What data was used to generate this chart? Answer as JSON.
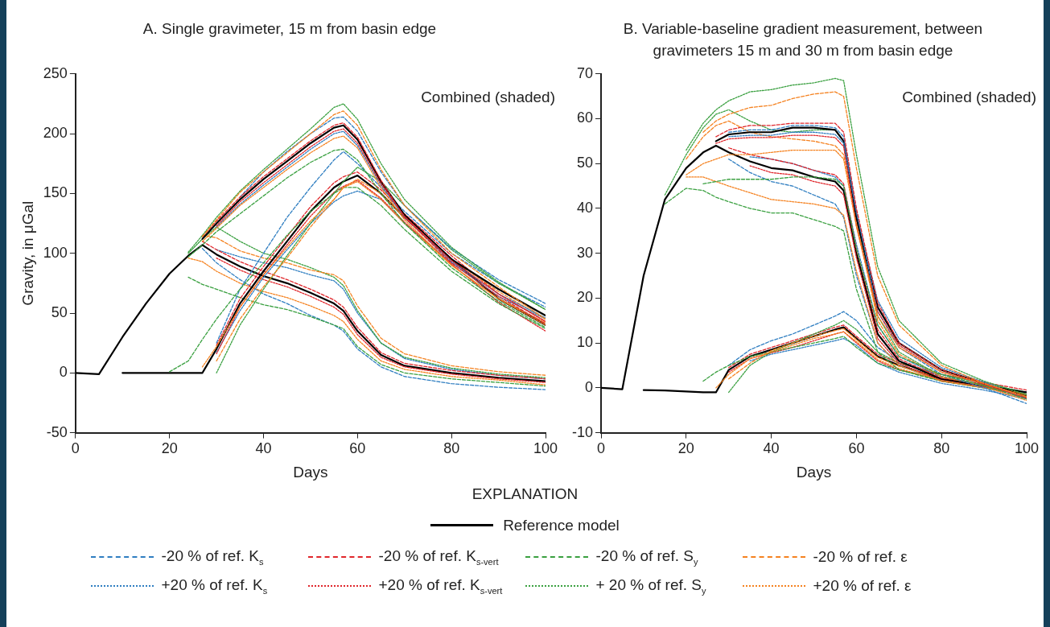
{
  "chart_data": [
    {
      "type": "line",
      "title": "A. Single gravimeter, 15 m from basin edge",
      "xlabel": "Days",
      "ylabel": "Gravity, in μGal",
      "legend_title": "EXPLANATION",
      "legend": "bottom",
      "marker": "none",
      "grid": false,
      "xlim": [
        0,
        100
      ],
      "xticks": [
        0,
        20,
        40,
        60,
        80,
        100
      ],
      "ylim": [
        -50,
        250
      ],
      "yticks": [
        -50,
        0,
        50,
        100,
        150,
        200,
        250
      ],
      "annotations": [
        "Combined (shaded)"
      ],
      "x": [
        0,
        5,
        10,
        15,
        20,
        24,
        27,
        30,
        35,
        40,
        45,
        50,
        55,
        57,
        60,
        65,
        70,
        80,
        90,
        100
      ],
      "series": [
        {
          "color": "#000000",
          "line_style": "solid",
          "values": [
            0,
            -1,
            30,
            58,
            83,
            98,
            107,
            99,
            89,
            81,
            75,
            67,
            58,
            52,
            35,
            15,
            6,
            0,
            -4,
            -7
          ]
        },
        {
          "color": "#2f7ec1",
          "line_style": "dashed",
          "values": [
            null,
            null,
            null,
            null,
            null,
            null,
            104,
            92,
            78,
            66,
            58,
            48,
            40,
            35,
            20,
            5,
            -3,
            -9,
            -12,
            -14
          ]
        },
        {
          "color": "#2f7ec1",
          "line_style": "dotted",
          "values": [
            null,
            null,
            null,
            null,
            null,
            null,
            null,
            103,
            97,
            92,
            88,
            82,
            77,
            70,
            50,
            25,
            12,
            3,
            -2,
            -5
          ]
        },
        {
          "color": "#e0262b",
          "line_style": "dashed",
          "values": [
            null,
            null,
            null,
            null,
            null,
            null,
            110,
            103,
            93,
            85,
            78,
            70,
            61,
            55,
            38,
            17,
            8,
            2,
            -2,
            -5
          ]
        },
        {
          "color": "#e0262b",
          "line_style": "dotted",
          "values": [
            null,
            null,
            null,
            null,
            null,
            null,
            null,
            96,
            86,
            78,
            72,
            64,
            55,
            49,
            32,
            13,
            5,
            -1,
            -5,
            -8
          ]
        },
        {
          "color": "#3aa040",
          "line_style": "dashed",
          "values": [
            null,
            null,
            null,
            null,
            null,
            80,
            74,
            70,
            63,
            57,
            53,
            47,
            40,
            37,
            22,
            7,
            0,
            -5,
            -8,
            -11
          ]
        },
        {
          "color": "#3aa040",
          "line_style": "dotted",
          "values": [
            null,
            null,
            null,
            null,
            null,
            100,
            112,
            122,
            110,
            100,
            95,
            88,
            80,
            73,
            52,
            25,
            13,
            4,
            -1,
            -4
          ]
        },
        {
          "color": "#f58220",
          "line_style": "dashed",
          "values": [
            null,
            null,
            null,
            null,
            null,
            null,
            115,
            113,
            102,
            96,
            92,
            86,
            82,
            77,
            56,
            29,
            16,
            6,
            1,
            -2
          ]
        },
        {
          "color": "#f58220",
          "line_style": "dotted",
          "values": [
            null,
            null,
            null,
            null,
            null,
            96,
            93,
            85,
            75,
            68,
            63,
            56,
            48,
            43,
            28,
            10,
            3,
            -3,
            -6,
            -10
          ]
        },
        {
          "color": "#000000",
          "line_style": "solid",
          "values": [
            null,
            null,
            0,
            0,
            0,
            0,
            0,
            20,
            58,
            85,
            110,
            135,
            155,
            160,
            165,
            150,
            130,
            95,
            62,
            40
          ]
        },
        {
          "color": "#2f7ec1",
          "line_style": "dashed",
          "values": [
            null,
            null,
            null,
            null,
            null,
            null,
            null,
            25,
            70,
            100,
            130,
            155,
            178,
            185,
            175,
            155,
            135,
            100,
            75,
            55
          ]
        },
        {
          "color": "#2f7ec1",
          "line_style": "dotted",
          "values": [
            null,
            null,
            null,
            null,
            null,
            null,
            null,
            17,
            52,
            80,
            103,
            125,
            143,
            148,
            152,
            145,
            125,
            92,
            64,
            45
          ]
        },
        {
          "color": "#e0262b",
          "line_style": "dashed",
          "values": [
            null,
            null,
            null,
            null,
            null,
            null,
            null,
            23,
            62,
            89,
            114,
            139,
            159,
            164,
            168,
            153,
            133,
            98,
            66,
            43
          ]
        },
        {
          "color": "#e0262b",
          "line_style": "dotted",
          "values": [
            null,
            null,
            null,
            null,
            null,
            null,
            null,
            16,
            55,
            82,
            107,
            131,
            151,
            156,
            161,
            146,
            126,
            91,
            59,
            35
          ]
        },
        {
          "color": "#3aa040",
          "line_style": "dashed",
          "values": [
            null,
            null,
            null,
            null,
            1,
            10,
            28,
            45,
            70,
            92,
            115,
            135,
            150,
            155,
            155,
            140,
            120,
            85,
            58,
            37
          ]
        },
        {
          "color": "#3aa040",
          "line_style": "dotted",
          "values": [
            null,
            null,
            null,
            null,
            null,
            null,
            null,
            0,
            40,
            70,
            98,
            125,
            150,
            160,
            172,
            160,
            140,
            103,
            75,
            53
          ]
        },
        {
          "color": "#f58220",
          "line_style": "dashed",
          "values": [
            null,
            null,
            null,
            null,
            null,
            null,
            null,
            10,
            45,
            72,
            96,
            122,
            145,
            155,
            162,
            150,
            130,
            95,
            68,
            45
          ]
        },
        {
          "color": "#f58220",
          "line_style": "dotted",
          "values": [
            null,
            null,
            null,
            null,
            null,
            null,
            5,
            22,
            55,
            82,
            105,
            127,
            145,
            155,
            160,
            145,
            125,
            90,
            62,
            42
          ]
        },
        {
          "name": "Reference model",
          "color": "#000000",
          "line_style": "solid",
          "values": [
            null,
            null,
            null,
            null,
            null,
            null,
            112,
            125,
            145,
            162,
            177,
            192,
            205,
            207,
            195,
            160,
            132,
            95,
            70,
            48
          ]
        },
        {
          "name": "-20 % of ref. K$_{s}$",
          "color": "#2f7ec1",
          "line_style": "dashed",
          "values": [
            null,
            null,
            null,
            null,
            null,
            null,
            null,
            null,
            147,
            168,
            185,
            200,
            213,
            214,
            202,
            168,
            140,
            104,
            78,
            58
          ]
        },
        {
          "name": "+20 % of ref. K$_{s}$",
          "color": "#2f7ec1",
          "line_style": "dotted",
          "values": [
            null,
            null,
            null,
            null,
            null,
            null,
            null,
            122,
            141,
            157,
            172,
            187,
            200,
            202,
            190,
            157,
            130,
            93,
            66,
            46
          ]
        },
        {
          "name": "-20 % of ref. K$_{s-vert}$",
          "color": "#e0262b",
          "line_style": "dashed",
          "values": [
            null,
            null,
            null,
            null,
            null,
            null,
            114,
            127,
            147,
            164,
            179,
            194,
            207,
            209,
            197,
            161,
            130,
            92,
            64,
            41
          ]
        },
        {
          "name": "+20 % of ref. K$_{s-vert}$",
          "color": "#e0262b",
          "line_style": "dotted",
          "values": [
            null,
            null,
            null,
            null,
            null,
            null,
            null,
            123,
            143,
            159,
            174,
            189,
            202,
            204,
            192,
            158,
            131,
            94,
            66,
            43
          ]
        },
        {
          "name": "-20 % of ref. S$_{y}$",
          "color": "#3aa040",
          "line_style": "dashed",
          "values": [
            null,
            null,
            null,
            null,
            null,
            97,
            107,
            118,
            133,
            148,
            163,
            176,
            186,
            187,
            178,
            150,
            125,
            88,
            60,
            38
          ]
        },
        {
          "name": "+ 20 % of ref. S$_{y}$",
          "color": "#3aa040",
          "line_style": "dotted",
          "values": [
            null,
            null,
            null,
            null,
            null,
            101,
            115,
            130,
            152,
            170,
            187,
            204,
            222,
            225,
            212,
            175,
            145,
            105,
            76,
            53
          ]
        },
        {
          "name": "-20 % of ref. ε",
          "color": "#f58220",
          "line_style": "dashed",
          "values": [
            null,
            null,
            null,
            null,
            null,
            null,
            114,
            128,
            151,
            168,
            184,
            200,
            216,
            219,
            207,
            170,
            140,
            100,
            72,
            45
          ]
        },
        {
          "name": "+20 % of ref. ε",
          "color": "#f58220",
          "line_style": "dotted",
          "values": [
            null,
            null,
            null,
            null,
            null,
            null,
            110,
            121,
            140,
            155,
            170,
            184,
            196,
            198,
            188,
            155,
            128,
            90,
            62,
            40
          ]
        }
      ]
    },
    {
      "type": "line",
      "title": "B. Variable-baseline gradient measurement, between gravimeters 15 m and 30 m from basin edge",
      "xlabel": "Days",
      "marker": "none",
      "grid": false,
      "xlim": [
        0,
        100
      ],
      "xticks": [
        0,
        20,
        40,
        60,
        80,
        100
      ],
      "ylim": [
        -10,
        70
      ],
      "yticks": [
        -10,
        0,
        10,
        20,
        30,
        40,
        50,
        60,
        70
      ],
      "annotations": [
        "Combined (shaded)"
      ],
      "x": [
        0,
        5,
        10,
        15,
        20,
        24,
        27,
        30,
        35,
        40,
        45,
        50,
        55,
        57,
        60,
        65,
        70,
        80,
        90,
        100
      ],
      "series": [
        {
          "color": "#000000",
          "line_style": "solid",
          "values": [
            null,
            null,
            -0.5,
            -0.6,
            -0.8,
            -1,
            -1,
            4,
            7,
            8.5,
            10,
            11.5,
            13,
            13.5,
            11,
            7,
            5,
            2,
            0.5,
            -1.5
          ]
        },
        {
          "color": "#2f7ec1",
          "line_style": "dashed",
          "values": [
            null,
            null,
            null,
            null,
            null,
            null,
            null,
            5,
            8.5,
            10.5,
            12,
            14,
            16,
            17,
            15,
            9,
            6,
            2.5,
            0.5,
            -1
          ]
        },
        {
          "color": "#2f7ec1",
          "line_style": "dotted",
          "values": [
            null,
            null,
            null,
            null,
            null,
            null,
            null,
            null,
            6,
            7.5,
            8.5,
            9.5,
            10.5,
            11,
            9.5,
            5.5,
            3.5,
            1,
            -0.5,
            -2.5
          ]
        },
        {
          "color": "#e0262b",
          "line_style": "dashed",
          "values": [
            null,
            null,
            null,
            null,
            null,
            null,
            null,
            4.5,
            7.5,
            9,
            10.5,
            12,
            13.5,
            14,
            11.5,
            7.5,
            5.5,
            3,
            1.2,
            -0.5
          ]
        },
        {
          "color": "#e0262b",
          "line_style": "dotted",
          "values": [
            null,
            null,
            null,
            null,
            null,
            null,
            null,
            3.5,
            6.5,
            7.8,
            9,
            10.5,
            12,
            12.5,
            10,
            6,
            4,
            1.8,
            0.2,
            -2.3
          ]
        },
        {
          "color": "#3aa040",
          "line_style": "dashed",
          "values": [
            null,
            null,
            null,
            null,
            null,
            1.5,
            3.5,
            5,
            7,
            8,
            9,
            10,
            11,
            11.5,
            9,
            5.5,
            4,
            1.5,
            0,
            -1.5
          ]
        },
        {
          "color": "#3aa040",
          "line_style": "dotted",
          "values": [
            null,
            null,
            null,
            null,
            null,
            null,
            null,
            -1,
            5,
            8,
            10,
            12,
            14,
            15,
            13,
            8,
            5.5,
            3,
            1,
            -1
          ]
        },
        {
          "color": "#f58220",
          "line_style": "dashed",
          "values": [
            null,
            null,
            null,
            null,
            null,
            null,
            null,
            2,
            5.5,
            8.3,
            10,
            11.5,
            12.8,
            13.2,
            10.8,
            6.8,
            4.8,
            2.2,
            0.6,
            -1.8
          ]
        },
        {
          "color": "#f58220",
          "line_style": "dotted",
          "values": [
            null,
            null,
            null,
            null,
            null,
            null,
            0,
            3,
            6.5,
            8,
            9.5,
            11,
            12,
            12.5,
            10.3,
            6.3,
            4.3,
            1.6,
            0.2,
            -2.8
          ]
        },
        {
          "color": "#000000",
          "line_style": "solid",
          "values": [
            0,
            -0.3,
            25,
            42,
            49,
            52.5,
            54,
            52.5,
            50.5,
            49,
            48.5,
            47,
            46,
            44,
            30,
            12,
            6,
            2,
            0.5,
            -1
          ]
        },
        {
          "color": "#2f7ec1",
          "line_style": "dashed",
          "values": [
            null,
            null,
            null,
            null,
            null,
            null,
            null,
            51,
            48,
            46,
            45,
            43,
            41,
            38,
            25,
            10,
            5,
            1.5,
            0,
            -1.5
          ]
        },
        {
          "color": "#2f7ec1",
          "line_style": "dotted",
          "values": [
            null,
            null,
            null,
            null,
            null,
            null,
            null,
            null,
            51.5,
            51,
            50,
            48.5,
            47,
            45,
            32,
            14,
            7,
            2.5,
            0.5,
            -1.5
          ]
        },
        {
          "color": "#e0262b",
          "line_style": "dashed",
          "values": [
            null,
            null,
            null,
            null,
            null,
            null,
            null,
            53.5,
            52,
            51,
            50,
            48.5,
            47.5,
            45.5,
            31,
            13,
            6.5,
            2.2,
            0.8,
            -1.8
          ]
        },
        {
          "color": "#e0262b",
          "line_style": "dotted",
          "values": [
            null,
            null,
            null,
            null,
            null,
            null,
            null,
            null,
            49.5,
            48,
            47.5,
            46,
            45,
            43,
            29,
            11,
            5.5,
            1.5,
            0.2,
            -1.5
          ]
        },
        {
          "color": "#3aa040",
          "line_style": "dashed",
          "values": [
            null,
            null,
            null,
            41,
            44.5,
            44,
            42.5,
            41.5,
            40,
            39,
            39,
            37.5,
            36,
            35,
            22,
            8,
            4,
            1.5,
            0,
            -1.5
          ]
        },
        {
          "color": "#3aa040",
          "line_style": "dotted",
          "values": [
            null,
            null,
            null,
            43,
            52,
            58,
            61,
            62,
            59.5,
            57.5,
            57,
            57.5,
            57.5,
            55,
            38,
            16,
            8,
            2.5,
            0.5,
            -1.5
          ]
        },
        {
          "color": "#f58220",
          "line_style": "dashed",
          "values": [
            null,
            null,
            null,
            null,
            51,
            56,
            58.5,
            59.5,
            57,
            56,
            55.5,
            55,
            54,
            52,
            37,
            15,
            7.5,
            2.5,
            0.5,
            -1.5
          ]
        },
        {
          "color": "#f58220",
          "line_style": "dotted",
          "values": [
            null,
            null,
            null,
            null,
            47,
            47,
            46,
            45,
            43.5,
            42,
            41.5,
            41,
            40,
            38.5,
            26,
            10,
            5,
            1.5,
            0,
            -1.5
          ]
        },
        {
          "color": "#000000",
          "line_style": "solid",
          "values": [
            null,
            null,
            null,
            null,
            null,
            null,
            55,
            56.5,
            57,
            57,
            58,
            58,
            57.5,
            55,
            38,
            18,
            10,
            4,
            1,
            -2
          ]
        },
        {
          "color": "#2f7ec1",
          "line_style": "dashed",
          "values": [
            null,
            null,
            null,
            null,
            null,
            null,
            null,
            57,
            57.5,
            57.5,
            58.5,
            58.5,
            58,
            56,
            39.5,
            17,
            9,
            3,
            0,
            -3.5
          ]
        },
        {
          "color": "#2f7ec1",
          "line_style": "dotted",
          "values": [
            null,
            null,
            null,
            null,
            null,
            null,
            null,
            56,
            56.3,
            56.3,
            57,
            57,
            56.5,
            54.5,
            39,
            19.5,
            11,
            4.5,
            1.3,
            -2.3
          ]
        },
        {
          "color": "#e0262b",
          "line_style": "dashed",
          "values": [
            null,
            null,
            null,
            null,
            null,
            null,
            56,
            57.5,
            58.5,
            58.5,
            59,
            59,
            59,
            57,
            40,
            19,
            10,
            4,
            1,
            -2
          ]
        },
        {
          "color": "#e0262b",
          "line_style": "dotted",
          "values": [
            null,
            null,
            null,
            null,
            null,
            null,
            54.5,
            55.5,
            55.8,
            55.8,
            56.3,
            56.3,
            55.8,
            53.8,
            36,
            17,
            9.5,
            3.5,
            0.8,
            -2.3
          ]
        },
        {
          "color": "#3aa040",
          "line_style": "dashed",
          "values": [
            null,
            null,
            null,
            null,
            null,
            45.5,
            46,
            46.5,
            46.5,
            46.5,
            47,
            47,
            46.5,
            45,
            31,
            14,
            7,
            3,
            0.5,
            -2.5
          ]
        },
        {
          "color": "#3aa040",
          "line_style": "dotted",
          "values": [
            null,
            null,
            null,
            null,
            53,
            59,
            62,
            64,
            66,
            66.5,
            67.5,
            68,
            69,
            68.5,
            52,
            27,
            15,
            5.5,
            1.5,
            -1.5
          ]
        },
        {
          "color": "#f58220",
          "line_style": "dashed",
          "values": [
            null,
            null,
            null,
            null,
            null,
            57,
            59.5,
            61,
            62.5,
            63,
            64.5,
            65.5,
            66,
            65,
            49,
            25,
            14,
            5,
            1,
            -2
          ]
        },
        {
          "color": "#f58220",
          "line_style": "dotted",
          "values": [
            null,
            null,
            null,
            null,
            47.5,
            50,
            51,
            52,
            52,
            52.5,
            53,
            53,
            53,
            51,
            36,
            16,
            9,
            3.5,
            1,
            -2
          ]
        }
      ]
    }
  ]
}
